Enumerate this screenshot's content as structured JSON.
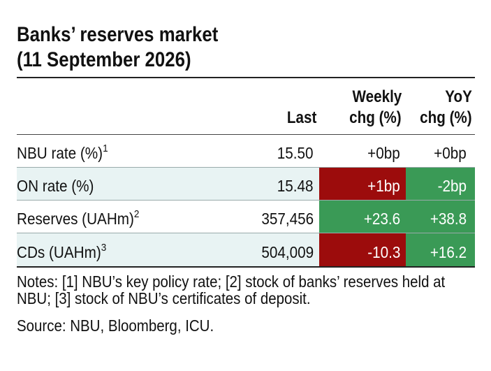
{
  "title": {
    "line1": "Banks’ reserves market",
    "line2": "(11 September 2026)"
  },
  "columns": {
    "last": "Last",
    "weekly_line1": "Weekly",
    "weekly_line2": "chg (%)",
    "yoy_line1": "YoY",
    "yoy_line2": "chg (%)"
  },
  "rows": [
    {
      "label": "NBU rate (%)",
      "sup": "1",
      "last": "15.50",
      "weekly": "+0bp",
      "yoy": "+0bp"
    },
    {
      "label": "ON rate (%)",
      "sup": "",
      "last": "15.48",
      "weekly": "+1bp",
      "yoy": "-2bp"
    },
    {
      "label": "Reserves (UAHm)",
      "sup": "2",
      "last": "357,456",
      "weekly": "+23.6",
      "yoy": "+38.8"
    },
    {
      "label": "CDs (UAHm)",
      "sup": "3",
      "last": "504,009",
      "weekly": "-10.3",
      "yoy": "+16.2"
    }
  ],
  "colors": {
    "shade": "#e8f3f3",
    "negative_red": "#9c0c0c",
    "positive_green": "#3a9a56"
  },
  "notes": "Notes: [1] NBU’s key policy rate; [2] stock of banks’ reserves held at NBU; [3] stock of NBU’s certificates of deposit.",
  "source": "Source: NBU, Bloomberg, ICU."
}
